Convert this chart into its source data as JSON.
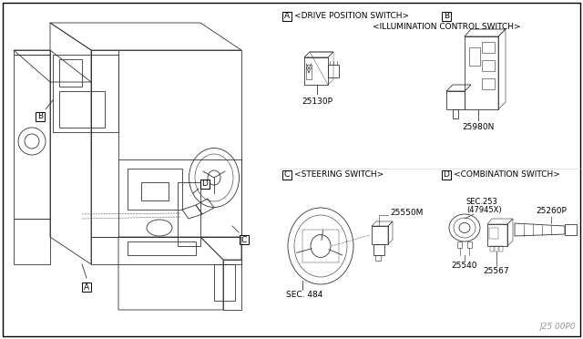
{
  "background_color": "#ffffff",
  "border_color": "#000000",
  "watermark": "J25 00P0",
  "section_titles": {
    "A": "<DRIVE POSITION SWITCH>",
    "B": "<ILLUMINATION CONTROL SWITCH>",
    "C": "<STEERING SWITCH>",
    "D": "<COMBINATION SWITCH>"
  },
  "part_numbers": {
    "A_part": "25130P",
    "B_part": "25980N",
    "C_part": "25550M",
    "C_sec": "SEC. 484",
    "D_sec1": "SEC.253",
    "D_sec2": "(47945X)",
    "D_part1": "25540",
    "D_part2": "25567",
    "D_part3": "25260P"
  },
  "fig_width": 6.4,
  "fig_height": 3.72,
  "dpi": 100
}
